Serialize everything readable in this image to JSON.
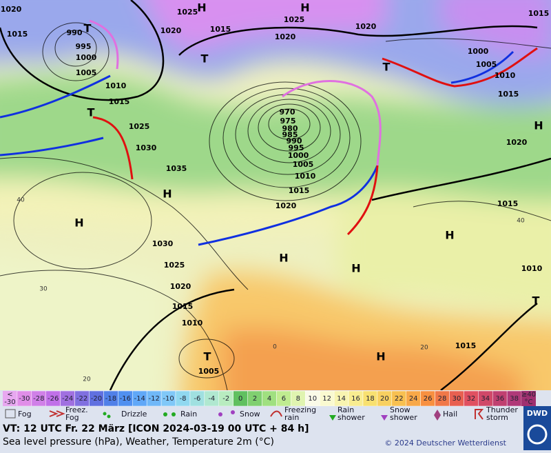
{
  "map": {
    "isobar_labels": [
      1020,
      1015,
      990,
      995,
      1000,
      1005,
      1010,
      1015,
      1025,
      1030,
      1035,
      1025,
      1020,
      1015,
      1020,
      1025,
      1020,
      1015,
      1000,
      1005,
      1010,
      1015,
      1020,
      970,
      975,
      980,
      985,
      990,
      995,
      1000,
      1005,
      1010,
      1015,
      1020,
      1030,
      1025,
      1020,
      1015,
      1010,
      1005,
      1015,
      1010,
      1015
    ],
    "pressure_centers": [
      "H",
      "H",
      "H",
      "H",
      "H",
      "H",
      "H",
      "H",
      "H",
      "T",
      "T",
      "T",
      "T",
      "T",
      "T"
    ],
    "temperature_labels": [
      40,
      30,
      20,
      40,
      20,
      0
    ]
  },
  "colorbar": {
    "low": {
      "top": "<",
      "bottom": "-30"
    },
    "high": {
      "top": "≥40",
      "bottom": "°C"
    },
    "low_color": "#e8a8f0",
    "high_color": "#a03070",
    "steps": [
      {
        "value": -30,
        "color": "#e08ee8"
      },
      {
        "value": -28,
        "color": "#d080e8"
      },
      {
        "value": -26,
        "color": "#c070e8"
      },
      {
        "value": -24,
        "color": "#a070e0"
      },
      {
        "value": -22,
        "color": "#8070e0"
      },
      {
        "value": -20,
        "color": "#6070e0"
      },
      {
        "value": -18,
        "color": "#5080e8"
      },
      {
        "value": -16,
        "color": "#5090f0"
      },
      {
        "value": -14,
        "color": "#60a8f8"
      },
      {
        "value": -12,
        "color": "#70b8f8"
      },
      {
        "value": -10,
        "color": "#80c8f8"
      },
      {
        "value": -8,
        "color": "#90d8f0"
      },
      {
        "value": -6,
        "color": "#a0e0e0"
      },
      {
        "value": -4,
        "color": "#b0e8d0"
      },
      {
        "value": -2,
        "color": "#b8ecc0"
      },
      {
        "value": 0,
        "color": "#60c060"
      },
      {
        "value": 2,
        "color": "#80d070"
      },
      {
        "value": 4,
        "color": "#a0e080"
      },
      {
        "value": 6,
        "color": "#c0ec90"
      },
      {
        "value": 8,
        "color": "#e0f4b0"
      },
      {
        "value": 10,
        "color": "#fafae8"
      },
      {
        "value": 12,
        "color": "#fafad0"
      },
      {
        "value": 14,
        "color": "#f8f4b0"
      },
      {
        "value": 16,
        "color": "#f8ec90"
      },
      {
        "value": 18,
        "color": "#f8e070"
      },
      {
        "value": 20,
        "color": "#f8d060"
      },
      {
        "value": 22,
        "color": "#f8c050"
      },
      {
        "value": 24,
        "color": "#f8a848"
      },
      {
        "value": 26,
        "color": "#f89040"
      },
      {
        "value": 28,
        "color": "#f07848"
      },
      {
        "value": 30,
        "color": "#e86050"
      },
      {
        "value": 32,
        "color": "#e05060"
      },
      {
        "value": 34,
        "color": "#d04868"
      },
      {
        "value": 36,
        "color": "#c04070"
      },
      {
        "value": 38,
        "color": "#b03878"
      }
    ]
  },
  "legend": [
    [
      "Fog"
    ],
    [
      "Freez.",
      "Fog"
    ],
    [
      "Drizzle"
    ],
    [
      "Rain"
    ],
    [
      "Snow"
    ],
    [
      "Freezing",
      "rain"
    ],
    [
      "Rain",
      "shower"
    ],
    [
      "Snow",
      "shower"
    ],
    [
      "Hail"
    ],
    [
      "Thunder",
      "storm"
    ]
  ],
  "footer": {
    "valid_time": "VT: 12 UTC Fr.  22 März [ICON 2024-03-19  00 UTC + 84 h]",
    "description": "Sea level pressure (hPa), Weather, Temperature 2m (°C)",
    "copyright": "© 2024 Deutscher Wetterdienst",
    "logo": "DWD"
  }
}
